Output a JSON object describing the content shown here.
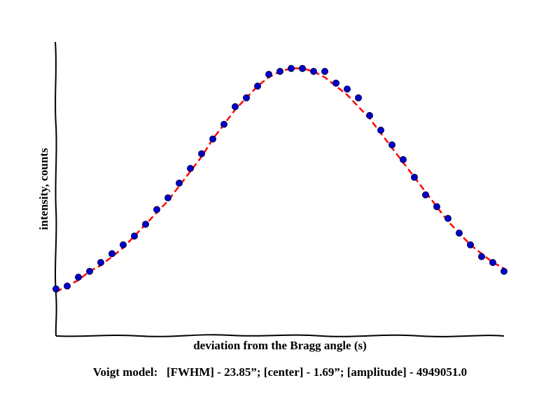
{
  "chart_data": {
    "type": "scatter",
    "x_label": "deviation from the Bragg angle (s)",
    "y_label": "intensity, counts",
    "caption": "Voigt model:   [FWHM] - 23.85”; [center] - 1.69”; [amplitude] - 4949051.0",
    "x": [
      -20,
      -19,
      -18,
      -17,
      -16,
      -15,
      -14,
      -13,
      -12,
      -11,
      -10,
      -9,
      -8,
      -7,
      -6,
      -5,
      -4,
      -3,
      -2,
      -1,
      0,
      1,
      2,
      3,
      4,
      5,
      6,
      7,
      8,
      9,
      10,
      11,
      12,
      13,
      14,
      15,
      16,
      17,
      18,
      19,
      20
    ],
    "points": {
      "color": "#0000cc",
      "values": [
        0.16,
        0.17,
        0.2,
        0.22,
        0.25,
        0.28,
        0.31,
        0.34,
        0.38,
        0.43,
        0.47,
        0.52,
        0.57,
        0.62,
        0.67,
        0.72,
        0.78,
        0.81,
        0.85,
        0.89,
        0.9,
        0.91,
        0.91,
        0.9,
        0.9,
        0.86,
        0.84,
        0.81,
        0.75,
        0.7,
        0.65,
        0.6,
        0.54,
        0.48,
        0.44,
        0.4,
        0.35,
        0.31,
        0.27,
        0.25,
        0.22
      ]
    },
    "fit": {
      "color": "#ff0000",
      "values": [
        0.15,
        0.17,
        0.19,
        0.22,
        0.24,
        0.27,
        0.3,
        0.34,
        0.38,
        0.42,
        0.46,
        0.51,
        0.56,
        0.61,
        0.67,
        0.72,
        0.77,
        0.81,
        0.85,
        0.88,
        0.9,
        0.91,
        0.91,
        0.9,
        0.88,
        0.85,
        0.82,
        0.78,
        0.74,
        0.69,
        0.64,
        0.59,
        0.54,
        0.49,
        0.44,
        0.39,
        0.35,
        0.31,
        0.28,
        0.25,
        0.23
      ]
    },
    "xlim": [
      -20,
      20
    ],
    "ylim": [
      0,
      1
    ]
  }
}
